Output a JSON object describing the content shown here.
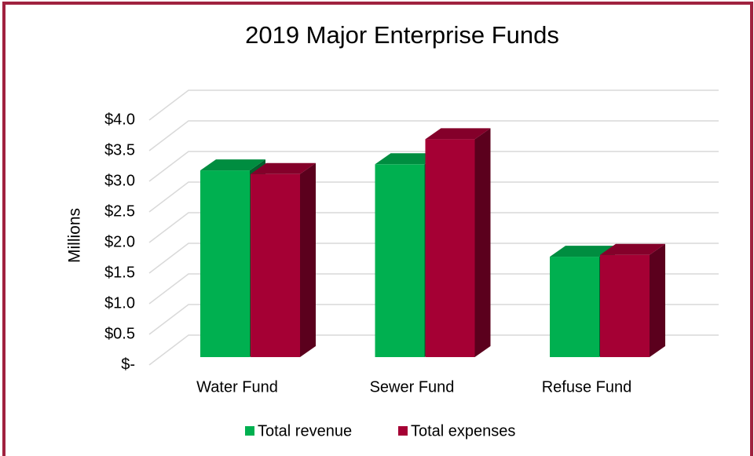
{
  "chart_data": {
    "type": "bar3d",
    "title": "2019 Major Enterprise Funds",
    "y_label": "Millions",
    "categories": [
      "Water Fund",
      "Sewer Fund",
      "Refuse Fund"
    ],
    "series": [
      {
        "name": "Total revenue",
        "color": "#00b050",
        "values": [
          3.05,
          3.15,
          1.64
        ]
      },
      {
        "name": "Total expenses",
        "color": "#a50034",
        "values": [
          2.99,
          3.56,
          1.67
        ]
      }
    ],
    "ylim": [
      0,
      4
    ],
    "yticks": [
      {
        "value": 0,
        "label": "$-"
      },
      {
        "value": 0.5,
        "label": "$0.5"
      },
      {
        "value": 1,
        "label": "$1.0"
      },
      {
        "value": 1.5,
        "label": "$1.5"
      },
      {
        "value": 2,
        "label": "$2.0"
      },
      {
        "value": 2.5,
        "label": "$2.5"
      },
      {
        "value": 3,
        "label": "$3.0"
      },
      {
        "value": 3.5,
        "label": "$3.5"
      },
      {
        "value": 4,
        "label": "$4.0"
      }
    ],
    "grid": true,
    "legend": "bottom"
  }
}
